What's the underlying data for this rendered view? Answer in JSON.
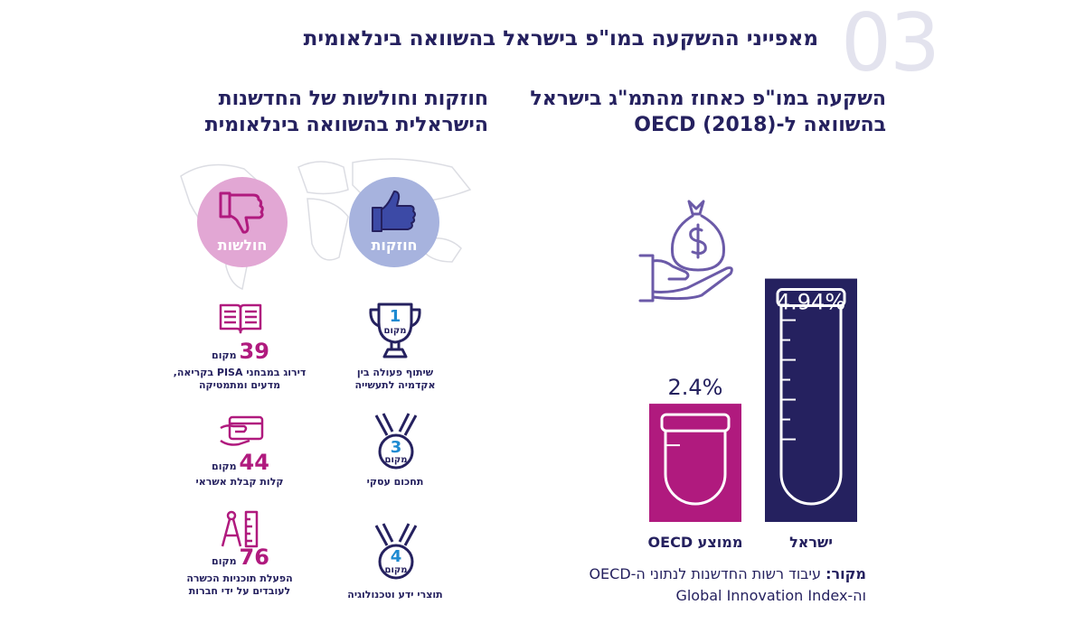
{
  "header": {
    "section_number": "03",
    "title": "מאפייני ההשקעה במו\"פ בישראל בהשוואה בינלאומית"
  },
  "left_panel": {
    "heading_line1": "חוזקות וחולשות של החדשנות",
    "heading_line2": "הישראלית בהשוואה בינלאומית",
    "weaknesses_label": "חולשות",
    "strengths_label": "חוזקות",
    "strengths": [
      {
        "rank": "1",
        "rank_word": "מקום",
        "caption_line1": "שיתוף פעולה בין",
        "caption_line2": "אקדמיה לתעשייה",
        "icon": "trophy-icon"
      },
      {
        "rank": "3",
        "rank_word": "מקום",
        "caption_line1": "תחכום עסקי",
        "caption_line2": "",
        "icon": "medal-icon"
      },
      {
        "rank": "4",
        "rank_word": "מקום",
        "caption_line1": "תוצרי ידע וטכנולוגיה",
        "caption_line2": "",
        "icon": "medal-icon"
      }
    ],
    "weaknesses": [
      {
        "rank": "39",
        "rank_word": "מקום",
        "caption_line1": "דירוג במבחני PISA בקריאה,",
        "caption_line2": "מדעים ומתמטיקה",
        "icon": "book-icon"
      },
      {
        "rank": "44",
        "rank_word": "מקום",
        "caption_line1": "קלות קבלת אשראי",
        "caption_line2": "",
        "icon": "credit-card-icon"
      },
      {
        "rank": "76",
        "rank_word": "מקום",
        "caption_line1": "הפעלת תוכניות הכשרה",
        "caption_line2": "לעובדים על ידי חברות",
        "icon": "drafting-tools-icon"
      }
    ]
  },
  "right_panel": {
    "heading_line1": "השקעה במו\"פ כאחוז מהתמ\"ג בישראל",
    "heading_line2": "בהשוואה ל-OECD (2018)",
    "source_bold": "מקור:",
    "source_line1": " עיבוד רשות החדשנות לנתוני ה-OECD",
    "source_line2": "וה-Global Innovation Index"
  },
  "chart_data": {
    "type": "bar",
    "categories": [
      "ממוצע OECD",
      "ישראל"
    ],
    "values": [
      2.4,
      4.94
    ],
    "value_labels": [
      "2.4%",
      "4.94%"
    ],
    "colors": [
      "#b01a7e",
      "#25215f"
    ],
    "ylim": [
      0,
      5.5
    ],
    "unit": "%",
    "title": "",
    "xlabel": "",
    "ylabel": ""
  },
  "colors": {
    "navy": "#25215f",
    "magenta": "#b01a7e",
    "purple_icon": "#6b5aa8",
    "pink_circle": "#e2a7d4",
    "blue_circle": "#a7b3de",
    "map_gray": "#dcdde3"
  }
}
